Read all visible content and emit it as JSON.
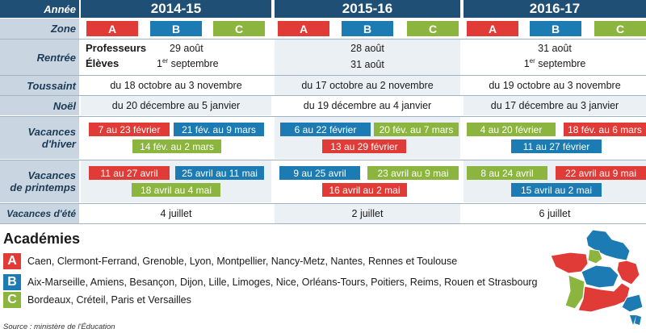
{
  "header": {
    "label": "Année",
    "years": [
      "2014-15",
      "2015-16",
      "2016-17"
    ]
  },
  "zone": {
    "label": "Zone",
    "letters": [
      "A",
      "B",
      "C"
    ]
  },
  "rentree": {
    "label": "Rentrée",
    "y1": {
      "profs_label": "Professeurs",
      "profs_date": "29 août",
      "eleves_label": "Élèves",
      "eleves_sup": "er",
      "eleves_date": "septembre",
      "eleves_day": "1"
    },
    "y2": {
      "profs_date": "28 août",
      "eleves_date": "31 août"
    },
    "y3": {
      "profs_date": "31 août",
      "eleves_day": "1",
      "eleves_sup": "er",
      "eleves_date": "septembre"
    }
  },
  "toussaint": {
    "label": "Toussaint",
    "values": [
      "du 18 octobre au 3 novembre",
      "du 17 octobre au 2 novembre",
      "du 19 octobre au 3 novembre"
    ]
  },
  "noel": {
    "label": "Noël",
    "values": [
      "du 20 décembre au 5 janvier",
      "du 19 décembre au 4 janvier",
      "du 17 décembre au 3 janvier"
    ]
  },
  "hiver": {
    "label": "Vacances\nd'hiver",
    "y1": {
      "A": "7 au 23 février",
      "B": "21 fév. au 9 mars",
      "C": "14 fév. au 2 mars"
    },
    "y2": {
      "B": "6 au 22  février",
      "C": "20 fév. au 7 mars",
      "A": "13  au 29 février"
    },
    "y3": {
      "C": "4 au 20 février",
      "A": "18 fév. au 6 mars",
      "B": "11 au 27 février"
    }
  },
  "printemps": {
    "label": "Vacances\nde printemps",
    "y1": {
      "A": "11 au 27 avril",
      "B": "25 avril au 11 mai",
      "C": "18 avril au  4 mai"
    },
    "y2": {
      "B": "9 au 25 avril",
      "C": "23 avril au 9 mai",
      "A": "16 avril au 2 mai"
    },
    "y3": {
      "C": "8 au 24  avril",
      "A": "22 avril au 9 mai",
      "B": "15 avril au 2 mai"
    }
  },
  "ete": {
    "label": "Vacances d'été",
    "values": [
      "4 juillet",
      "2 juillet",
      "6 juillet"
    ]
  },
  "academies": {
    "title": "Académies",
    "items": [
      {
        "letter": "A",
        "text": "Caen, Clermont-Ferrand, Grenoble, Lyon, Montpellier, Nancy-Metz, Nantes, Rennes et Toulouse"
      },
      {
        "letter": "B",
        "text": "Aix-Marseille, Amiens, Besançon, Dijon, Lille, Limoges, Nice, Orléans-Tours, Poitiers, Reims, Rouen et Strasbourg"
      },
      {
        "letter": "C",
        "text": "Bordeaux, Créteil, Paris et Versailles"
      }
    ]
  },
  "source": "Source : ministère de l'Éducation",
  "colors": {
    "A": "#e03b36",
    "B": "#1b7bb2",
    "C": "#8cb53f",
    "header": "#1f4f74",
    "label_bg": "#c9d6e1"
  }
}
